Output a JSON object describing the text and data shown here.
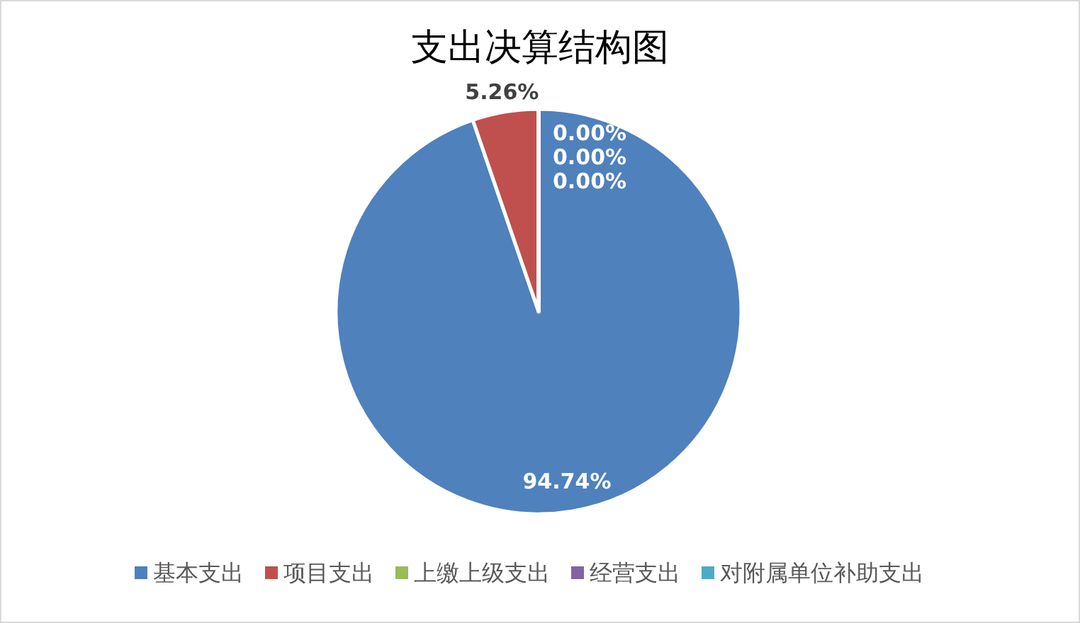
{
  "chart_data": {
    "type": "pie",
    "title": "支出决算结构图",
    "categories": [
      "基本支出",
      "项目支出",
      "上缴上级支出",
      "经营支出",
      "对附属单位补助支出"
    ],
    "values": [
      94.74,
      5.26,
      0,
      0,
      0
    ],
    "colors": [
      "#4f81bd",
      "#c0504d",
      "#9bbb59",
      "#8064a2",
      "#4bacc6"
    ],
    "value_labels": [
      "94.74%",
      "5.26%",
      "0.00%",
      "0.00%",
      "0.00%"
    ],
    "legend": "bottom"
  }
}
